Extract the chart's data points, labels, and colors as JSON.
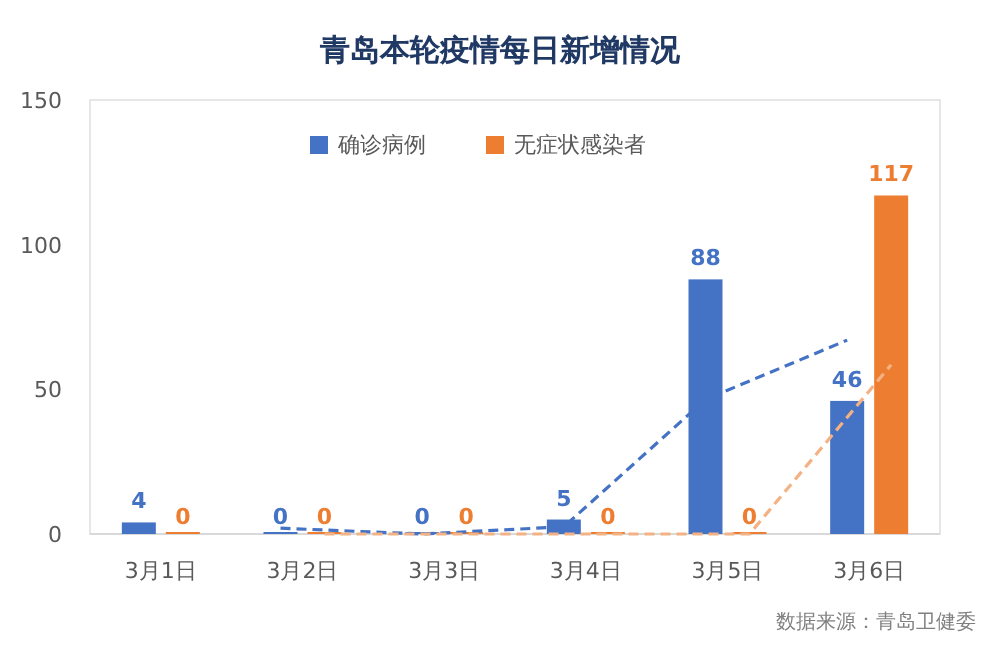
{
  "chart_data": {
    "type": "bar",
    "title": "青岛本轮疫情每日新增情况",
    "categories": [
      "3月1日",
      "3月2日",
      "3月3日",
      "3月4日",
      "3月5日",
      "3月6日"
    ],
    "series": [
      {
        "name": "确诊病例",
        "color": "#4472c4",
        "values": [
          4,
          0,
          0,
          5,
          88,
          46
        ],
        "value_labels": [
          "4",
          "0",
          "0",
          "5",
          "88",
          "46"
        ]
      },
      {
        "name": "无症状感染者",
        "color": "#ed7d31",
        "values": [
          0,
          0,
          0,
          0,
          0,
          117
        ],
        "value_labels": [
          "0",
          "0",
          "0",
          "0",
          "0",
          "117"
        ]
      },
      {
        "type": "line",
        "color": "#4472c4",
        "line_style": "dashed",
        "values": [
          null,
          2,
          0,
          2.5,
          46.5,
          67
        ]
      },
      {
        "type": "line",
        "color": "#f4b183",
        "line_style": "dashed",
        "values": [
          null,
          0,
          0,
          0,
          0,
          58.5
        ]
      }
    ],
    "ylim": [
      0,
      150
    ],
    "yticks": [
      0,
      50,
      100,
      150
    ],
    "legend": "top",
    "grid": false,
    "annotations": [
      "数据来源：青岛卫健委"
    ]
  }
}
